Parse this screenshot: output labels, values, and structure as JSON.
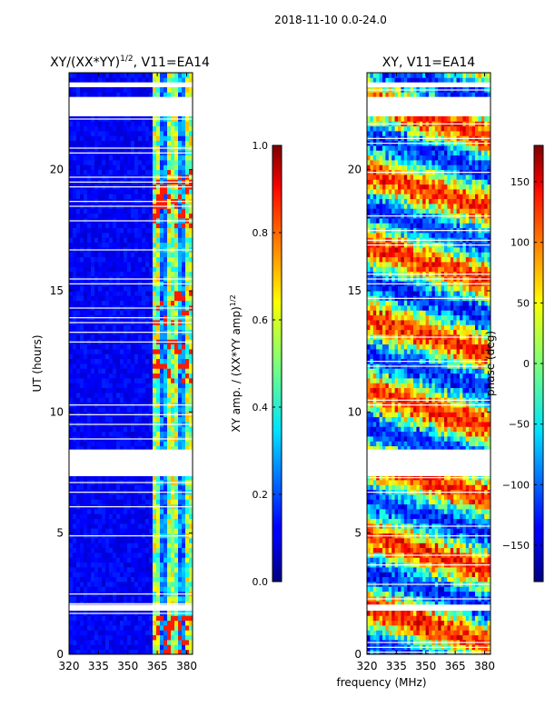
{
  "figure": {
    "suptitle": "2018-11-10 0.0-24.0"
  },
  "chart_data": [
    {
      "type": "heatmap",
      "title": "XY/(XX*YY)^{1/2}, V11=EA14",
      "title_main": "XY/(XX*YY)",
      "title_sup": "1/2",
      "title_tail": ", V11=EA14",
      "xlabel": "",
      "ylabel": "UT (hours)",
      "xlim": [
        320,
        383
      ],
      "ylim": [
        0,
        24
      ],
      "xticks": [
        320,
        335,
        350,
        365,
        380
      ],
      "yticks": [
        0,
        5,
        10,
        15,
        20
      ],
      "colormap": "jet",
      "colorbar": {
        "label_main": "XY amp. / (XX*YY amp)",
        "label_sup": "1/2",
        "range": [
          0.0,
          1.0
        ],
        "ticks": [
          "0.0",
          "0.2",
          "0.4",
          "0.6",
          "0.8",
          "1.0"
        ],
        "tick_values": [
          0.0,
          0.2,
          0.4,
          0.6,
          0.8,
          1.0
        ]
      },
      "blank_hours": [
        [
          7.35,
          8.45
        ],
        [
          22.2,
          23.0
        ],
        [
          1.9,
          2.05
        ],
        [
          23.5,
          23.6
        ]
      ]
    },
    {
      "type": "heatmap",
      "title": "XY, V11=EA14",
      "xlabel": "frequency (MHz)",
      "ylabel": "",
      "xlim": [
        320,
        383
      ],
      "ylim": [
        0,
        24
      ],
      "xticks": [
        320,
        335,
        350,
        365,
        380
      ],
      "yticks": [
        0,
        5,
        10,
        15,
        20
      ],
      "colormap": "jet",
      "colorbar": {
        "label_main": "phase (deg)",
        "range": [
          -180,
          180
        ],
        "ticks": [
          "150",
          "100",
          "50",
          "0",
          "−50",
          "−100",
          "−150"
        ],
        "tick_values": [
          150,
          100,
          50,
          0,
          -50,
          -100,
          -150
        ]
      },
      "blank_hours": [
        [
          7.35,
          8.45
        ],
        [
          22.2,
          23.0
        ],
        [
          1.9,
          2.05
        ],
        [
          23.5,
          23.6
        ]
      ]
    }
  ]
}
